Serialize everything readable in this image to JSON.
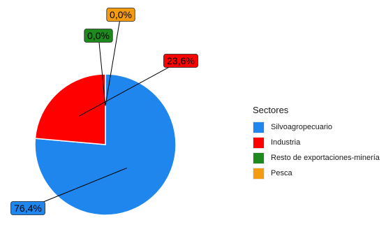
{
  "chart_data": {
    "type": "pie",
    "title": "",
    "legend_title": "Sectores",
    "legend_position": "right",
    "slices": [
      {
        "label": "Silvoagropecuario",
        "value": 76.4,
        "value_label": "76,4%",
        "color": "#1f86ee"
      },
      {
        "label": "Industria",
        "value": 23.6,
        "value_label": "23,6%",
        "color": "#ff0000"
      },
      {
        "label": "Resto de exportaciones-minería",
        "value": 0.0,
        "value_label": "0,0%",
        "color": "#1e8a1e"
      },
      {
        "label": "Pesca",
        "value": 0.0,
        "value_label": "0,0%",
        "color": "#f39c12"
      }
    ]
  }
}
